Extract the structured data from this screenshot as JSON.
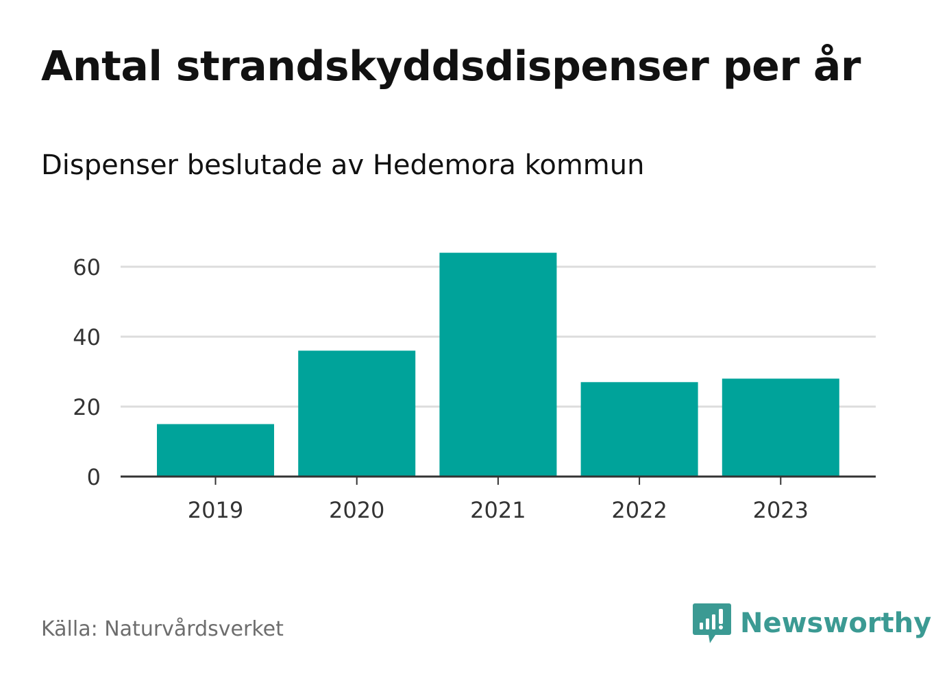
{
  "header": {
    "title": "Antal strandskyddsdispenser per år",
    "subtitle": "Dispenser beslutade av Hedemora kommun"
  },
  "footer": {
    "source": "Källa: Naturvårdsverket",
    "brand": "Newsworthy",
    "brand_icon": "newsworthy-logo-icon"
  },
  "colors": {
    "bar": "#00a39a",
    "grid": "#dcdcdc",
    "axis": "#333333",
    "brand": "#3b9a93"
  },
  "chart_data": {
    "type": "bar",
    "title": "Antal strandskyddsdispenser per år",
    "subtitle": "Dispenser beslutade av Hedemora kommun",
    "categories": [
      "2019",
      "2020",
      "2021",
      "2022",
      "2023"
    ],
    "values": [
      15,
      36,
      64,
      27,
      28
    ],
    "xlabel": "",
    "ylabel": "",
    "ylim": [
      0,
      64
    ],
    "yticks": [
      0,
      20,
      40,
      60
    ],
    "grid": true
  }
}
